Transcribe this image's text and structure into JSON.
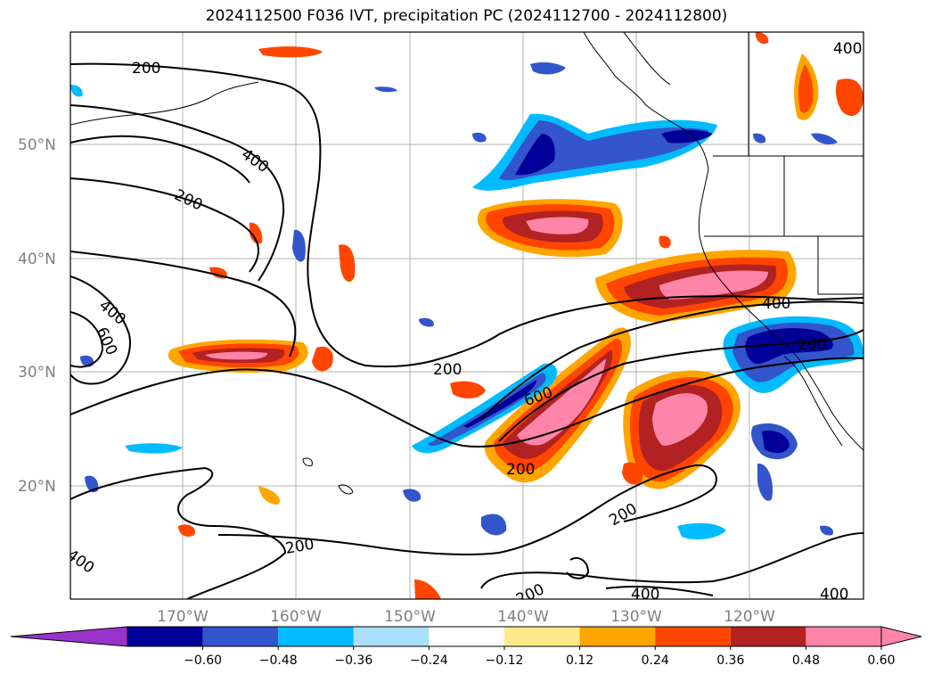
{
  "title": "2024112500 F036 IVT, precipitation PC (2024112700 - 2024112800)",
  "map": {
    "latitude_labels": [
      "50°N",
      "40°N",
      "30°N",
      "20°N"
    ],
    "longitude_labels": [
      "170°W",
      "160°W",
      "150°W",
      "140°W",
      "130°W",
      "120°W"
    ],
    "grid": true,
    "contour_labels": [
      "200",
      "400",
      "200",
      "400",
      "600",
      "200",
      "400",
      "200",
      "600",
      "200",
      "200",
      "200",
      "400",
      "400",
      "200",
      "400",
      "400"
    ]
  },
  "colorbar": {
    "ticks": [
      "−0.60",
      "−0.48",
      "−0.36",
      "−0.24",
      "−0.12",
      "0.12",
      "0.24",
      "0.36",
      "0.48",
      "0.60"
    ],
    "colors": {
      "below_min": "#9933cc",
      "bins": [
        "#000099",
        "#3355cc",
        "#00bbff",
        "#aae0fa",
        "#ffffff",
        "#ffe98a",
        "#ffa500",
        "#ff4500",
        "#b22222",
        "#ff85a8"
      ],
      "above_max": "#ff85a8"
    }
  }
}
